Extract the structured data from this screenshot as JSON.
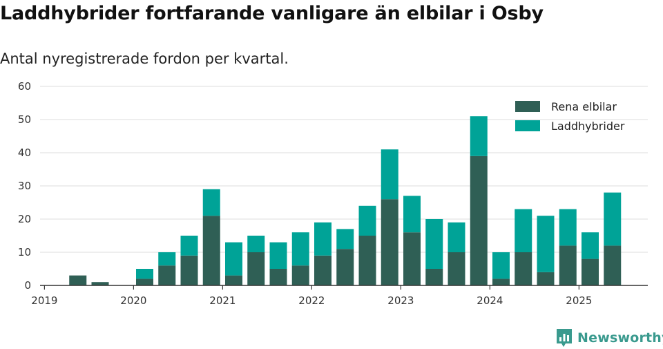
{
  "title": "Laddhybrider fortfarande vanligare än elbilar i Osby",
  "subtitle": "Antal nyregistrerade fordon per kvartal.",
  "brand": "Newsworthy",
  "chart_data": {
    "type": "bar",
    "stacked": true,
    "title": "Laddhybrider fortfarande vanligare än elbilar i Osby",
    "subtitle": "Antal nyregistrerade fordon per kvartal.",
    "ylim": [
      0,
      60
    ],
    "yticks": [
      0,
      10,
      20,
      30,
      40,
      50,
      60
    ],
    "grid": true,
    "legend_position": "top-right",
    "xtick_labels": [
      "2019",
      "2020",
      "2021",
      "2022",
      "2023",
      "2024",
      "2025"
    ],
    "categories": [
      "2019 Q1",
      "2019 Q2",
      "2019 Q3",
      "2019 Q4",
      "2020 Q1",
      "2020 Q2",
      "2020 Q3",
      "2020 Q4",
      "2021 Q1",
      "2021 Q2",
      "2021 Q3",
      "2021 Q4",
      "2022 Q1",
      "2022 Q2",
      "2022 Q3",
      "2022 Q4",
      "2023 Q1",
      "2023 Q2",
      "2023 Q3",
      "2023 Q4",
      "2024 Q1",
      "2024 Q2",
      "2024 Q3",
      "2024 Q4",
      "2025 Q1",
      "2025 Q2"
    ],
    "series": [
      {
        "name": "Rena elbilar",
        "color": "#2f5f55",
        "values": [
          0,
          3,
          1,
          0,
          2,
          6,
          9,
          21,
          3,
          10,
          5,
          6,
          9,
          11,
          15,
          26,
          16,
          5,
          10,
          39,
          2,
          10,
          4,
          12,
          8,
          12
        ]
      },
      {
        "name": "Laddhybrider",
        "color": "#00a397",
        "values": [
          0,
          0,
          0,
          0,
          3,
          4,
          6,
          8,
          10,
          5,
          8,
          10,
          10,
          6,
          9,
          15,
          11,
          15,
          9,
          12,
          8,
          13,
          17,
          11,
          8,
          16
        ]
      }
    ]
  }
}
